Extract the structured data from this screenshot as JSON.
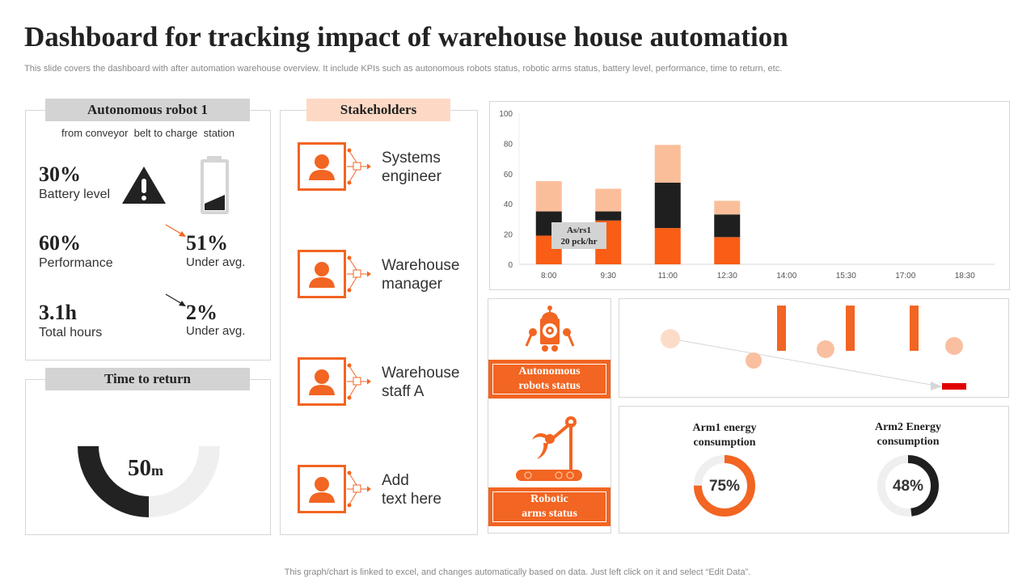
{
  "title": "Dashboard for tracking impact of warehouse house automation",
  "subtitle": "This slide covers the dashboard with after automation warehouse overview. It include KPIs such as autonomous robots status, robotic arms status, battery level, performance, time to return, etc.",
  "robot": {
    "heading": "Autonomous robot 1",
    "route": "from conveyor  belt to charge  station",
    "battery_value": "30%",
    "battery_label": "Battery level",
    "battery_fill": 0.3,
    "performance_value": "60%",
    "performance_label": "Performance",
    "perf_delta": "51%",
    "perf_delta_label": "Under avg.",
    "hours_value": "3.1h",
    "hours_label": "Total hours",
    "hours_delta": "2%",
    "hours_delta_label": "Under avg."
  },
  "time_to_return": {
    "heading": "Time to return",
    "value": "50",
    "unit": "m",
    "fraction": 0.5
  },
  "stakeholders": {
    "heading": "Stakeholders",
    "items": [
      {
        "label": "Systems\nengineer"
      },
      {
        "label": "Warehouse\nmanager"
      },
      {
        "label": "Warehouse\nstaff A"
      },
      {
        "label": "Add\ntext here"
      }
    ]
  },
  "status": {
    "robots_label": "Autonomous robots status",
    "arms_label": "Robotic arms status"
  },
  "energy": [
    {
      "label": "Arm1  energy consumption",
      "value": "75%",
      "fraction": 0.75,
      "color": "#f26522"
    },
    {
      "label": "Arm2  Energy consumption",
      "value": "48%",
      "fraction": 0.48,
      "color": "#1f1f1f"
    }
  ],
  "colors": {
    "accent": "#f26522",
    "dark": "#222222",
    "peach": "#fbbe9a",
    "alert": "#e00000"
  },
  "chart_data": {
    "type": "bar",
    "stacked": true,
    "categories": [
      "8:00",
      "9:30",
      "11:00",
      "12:30",
      "14:00",
      "15:30",
      "17:00",
      "18:30"
    ],
    "series": [
      {
        "color": "#f95d16",
        "values": [
          19,
          29,
          24,
          18,
          null,
          null,
          null,
          null
        ]
      },
      {
        "color": "#1f1f1f",
        "values": [
          16,
          6,
          30,
          15,
          null,
          null,
          null,
          null
        ]
      },
      {
        "color": "#fbbe9a",
        "values": [
          20,
          15,
          25,
          9,
          null,
          null,
          null,
          null
        ]
      }
    ],
    "yticks": [
      0,
      20,
      40,
      60,
      80,
      100
    ],
    "ylim": [
      0,
      100
    ],
    "grid": false,
    "annotation": {
      "line1": "As/rs1",
      "line2": "20 pck/hr"
    }
  },
  "footer": "This graph/chart is linked to excel,  and changes automatically based on data. Just left click on it and select “Edit Data”."
}
